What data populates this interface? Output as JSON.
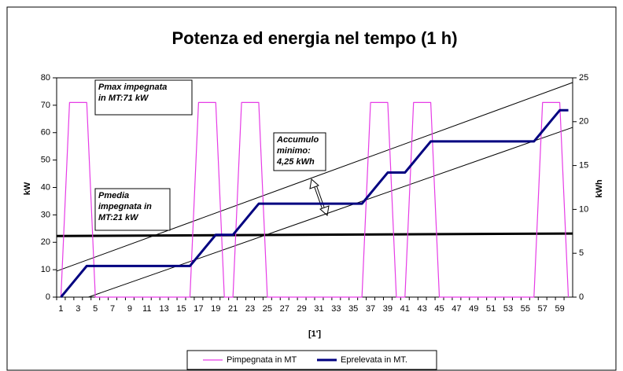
{
  "chart_data": {
    "type": "line",
    "title": "Potenza ed energia nel tempo (1 h)",
    "x_label": "[1']",
    "y_label": "kW",
    "y2_label": "kWh",
    "categories": [
      1,
      null,
      3,
      null,
      5,
      null,
      7,
      null,
      9,
      null,
      11,
      null,
      13,
      null,
      15,
      null,
      17,
      null,
      19,
      null,
      21,
      null,
      23,
      null,
      25,
      null,
      27,
      null,
      29,
      null,
      31,
      null,
      33,
      null,
      35,
      null,
      37,
      null,
      39,
      null,
      41,
      null,
      43,
      null,
      45,
      null,
      47,
      null,
      49,
      null,
      51,
      null,
      53,
      null,
      55,
      null,
      57,
      null,
      59,
      null
    ],
    "ylim": [
      0,
      80
    ],
    "yticks": [
      0,
      10,
      20,
      30,
      40,
      50,
      60,
      70,
      80
    ],
    "y2lim": [
      0,
      25
    ],
    "y2ticks": [
      0,
      5,
      10,
      15,
      20,
      25
    ],
    "legend": "bottom",
    "series": [
      {
        "name": "Pimpegnata in MT",
        "color": "#e63ce6",
        "axis": "y",
        "values": [
          0,
          71,
          71,
          71,
          0,
          0,
          0,
          0,
          0,
          0,
          0,
          0,
          0,
          0,
          0,
          0,
          71,
          71,
          71,
          0,
          0,
          71,
          71,
          71,
          0,
          0,
          0,
          0,
          0,
          0,
          0,
          0,
          0,
          0,
          0,
          0,
          71,
          71,
          71,
          0,
          0,
          71,
          71,
          71,
          0,
          0,
          0,
          0,
          0,
          0,
          0,
          0,
          0,
          0,
          0,
          0,
          71,
          71,
          71,
          0
        ]
      },
      {
        "name": "Eprelevata in MT.",
        "color": "#000080",
        "axis": "y2",
        "values": [
          0,
          1.18,
          2.37,
          3.55,
          3.55,
          3.55,
          3.55,
          3.55,
          3.55,
          3.55,
          3.55,
          3.55,
          3.55,
          3.55,
          3.55,
          3.55,
          4.73,
          5.92,
          7.1,
          7.1,
          7.1,
          8.28,
          9.47,
          10.65,
          10.65,
          10.65,
          10.65,
          10.65,
          10.65,
          10.65,
          10.65,
          10.65,
          10.65,
          10.65,
          10.65,
          10.65,
          11.83,
          13.02,
          14.2,
          14.2,
          14.2,
          15.38,
          16.57,
          17.75,
          17.75,
          17.75,
          17.75,
          17.75,
          17.75,
          17.75,
          17.75,
          17.75,
          17.75,
          17.75,
          17.75,
          17.75,
          18.93,
          20.12,
          21.3,
          21.3
        ]
      }
    ],
    "mean_line": {
      "color": "#000000",
      "values": [
        22.3,
        23.2
      ]
    },
    "envelope_lines": [
      {
        "x": [
          0.5,
          60.5
        ],
        "values": [
          2.96,
          24.46
        ]
      },
      {
        "x": [
          4.2,
          60.5
        ],
        "values": [
          0,
          19.35
        ]
      }
    ],
    "annotations": [
      {
        "lines": [
          "Pmax impegnata",
          "in MT:71 kW"
        ]
      },
      {
        "lines": [
          "Pmedia",
          "impegnata in",
          "MT:21 kW"
        ]
      },
      {
        "lines": [
          "Accumulo",
          "minimo:",
          "4,25 kWh"
        ]
      }
    ]
  }
}
